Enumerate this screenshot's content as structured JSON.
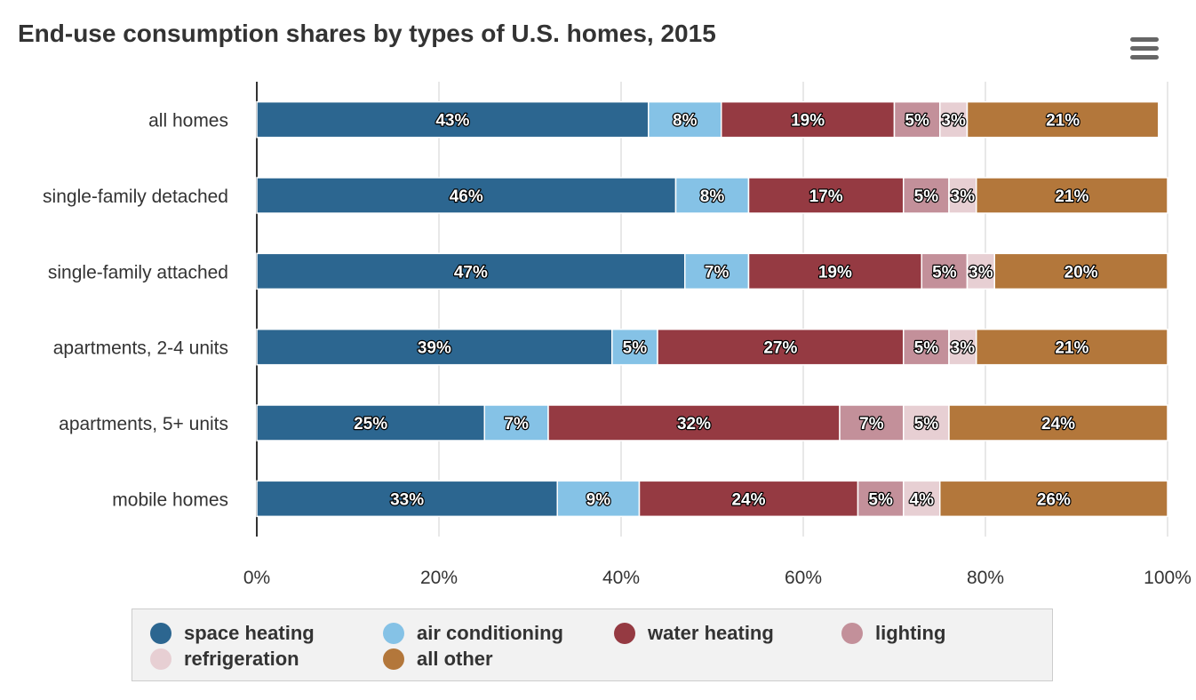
{
  "title": "End-use consumption shares by types of U.S. homes, 2015",
  "menu_icon": "hamburger-menu-icon",
  "chart_data": {
    "type": "bar",
    "orientation": "horizontal",
    "stacked": true,
    "title": "End-use consumption shares by types of U.S. homes, 2015",
    "xlabel": "",
    "ylabel": "",
    "xlim": [
      0,
      100
    ],
    "x_ticks": [
      "0%",
      "20%",
      "40%",
      "60%",
      "80%",
      "100%"
    ],
    "grid": true,
    "legend_position": "bottom",
    "categories": [
      "all homes",
      "single-family detached",
      "single-family attached",
      "apartments, 2-4 units",
      "apartments, 5+ units",
      "mobile homes"
    ],
    "series": [
      {
        "name": "space heating",
        "color": "#2c6690",
        "values": [
          43,
          46,
          47,
          39,
          25,
          33
        ],
        "labels": [
          "43%",
          "46%",
          "47%",
          "39%",
          "25%",
          "33%"
        ]
      },
      {
        "name": "air conditioning",
        "color": "#85c2e6",
        "values": [
          8,
          8,
          7,
          5,
          7,
          9
        ],
        "labels": [
          "8%",
          "8%",
          "7%",
          "5%",
          "7%",
          "9%"
        ]
      },
      {
        "name": "water heating",
        "color": "#953a42",
        "values": [
          19,
          17,
          19,
          27,
          32,
          24
        ],
        "labels": [
          "19%",
          "17%",
          "19%",
          "27%",
          "32%",
          "24%"
        ]
      },
      {
        "name": "lighting",
        "color": "#c3909a",
        "values": [
          5,
          5,
          5,
          5,
          7,
          5
        ],
        "labels": [
          "5%",
          "5%",
          "5%",
          "5%",
          "7%",
          "5%"
        ]
      },
      {
        "name": "refrigeration",
        "color": "#e7cfd3",
        "values": [
          3,
          3,
          3,
          3,
          5,
          4
        ],
        "labels": [
          "3%",
          "3%",
          "3%",
          "3%",
          "5%",
          "4%"
        ]
      },
      {
        "name": "all other",
        "color": "#b3773b",
        "values": [
          21,
          21,
          20,
          21,
          24,
          26
        ],
        "labels": [
          "21%",
          "21%",
          "20%",
          "21%",
          "24%",
          "26%"
        ]
      }
    ]
  }
}
